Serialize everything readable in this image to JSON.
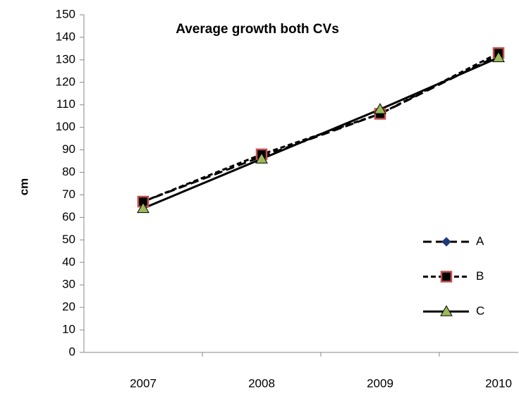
{
  "chart_data": {
    "type": "line",
    "title": "Average growth both CVs",
    "y_label": "cm",
    "categories": [
      "2007",
      "2008",
      "2009",
      "2010"
    ],
    "series": [
      {
        "name": "A",
        "color": "#000000",
        "line_style": "dashed",
        "marker": "diamond",
        "marker_color": "#1f3a7a",
        "values": [
          67,
          87,
          106,
          132
        ]
      },
      {
        "name": "B",
        "color": "#000000",
        "line_style": "dotted",
        "marker": "square",
        "marker_color": "#c0504d",
        "values": [
          67,
          88,
          106,
          133
        ]
      },
      {
        "name": "C",
        "color": "#000000",
        "line_style": "solid",
        "marker": "triangle",
        "marker_color": "#9bbb59",
        "values": [
          64,
          86,
          108,
          131
        ]
      }
    ],
    "ylim": [
      0,
      150
    ],
    "yticks": [
      0,
      10,
      20,
      30,
      40,
      50,
      60,
      70,
      80,
      90,
      100,
      110,
      120,
      130,
      140,
      150
    ],
    "grid": false,
    "legend": "lower right"
  }
}
